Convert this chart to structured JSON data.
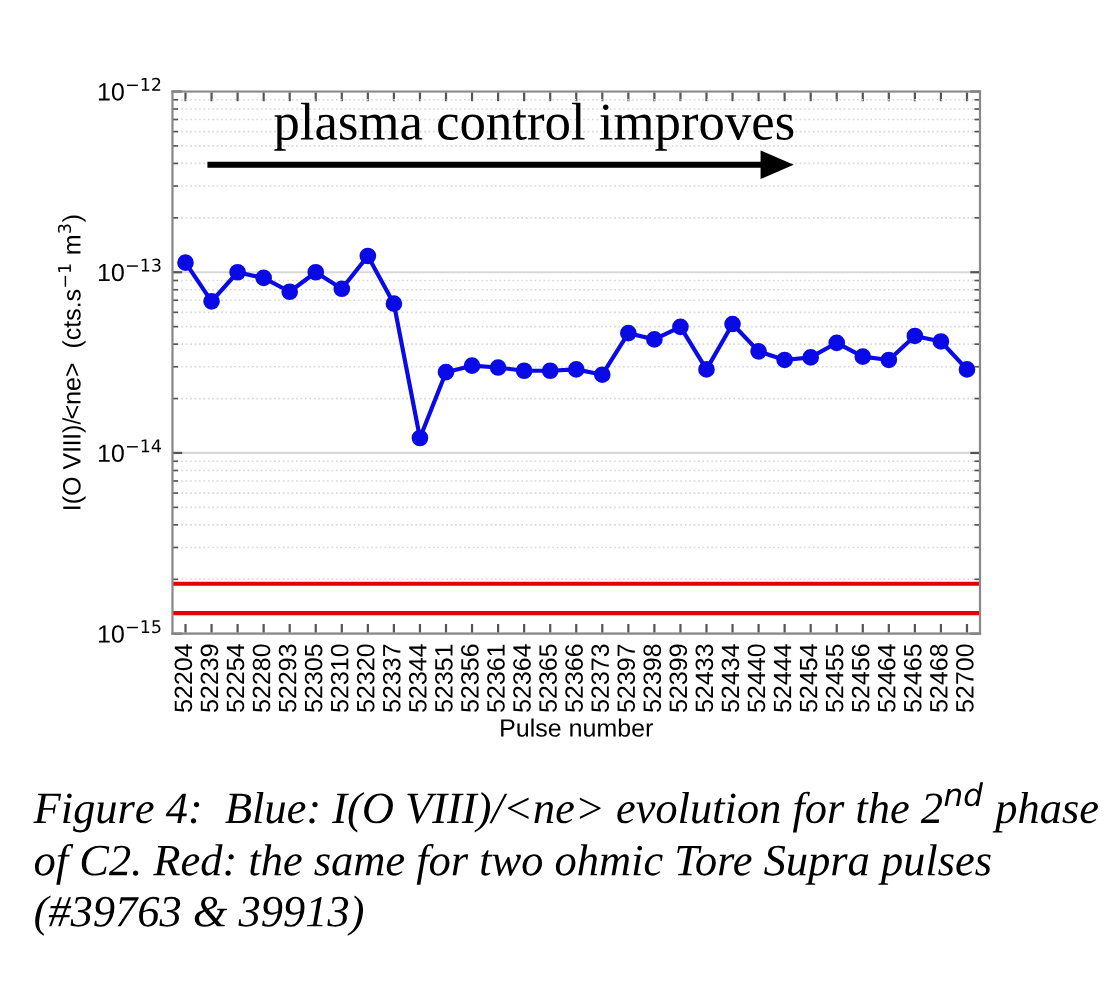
{
  "chart_data": {
    "type": "line",
    "xlabel": "Pulse number",
    "ylabel": "I(O VIII)/<ne>  (cts.s$^{−1}$ m$^{3}$)",
    "categories": [
      "52204",
      "52239",
      "52254",
      "52280",
      "52293",
      "52305",
      "52310",
      "52320",
      "52337",
      "52344",
      "52351",
      "52356",
      "52361",
      "52364",
      "52365",
      "52366",
      "52373",
      "52397",
      "52398",
      "52399",
      "52433",
      "52434",
      "52440",
      "52444",
      "52454",
      "52455",
      "52456",
      "52464",
      "52465",
      "52468",
      "52700"
    ],
    "series": [
      {
        "color": "#0a0ae6",
        "values": [
          1.13e-13,
          6.9e-14,
          1e-13,
          9.3e-14,
          7.8e-14,
          1e-13,
          8.1e-14,
          1.23e-13,
          6.7e-14,
          1.21e-14,
          2.8e-14,
          3.04e-14,
          2.97e-14,
          2.85e-14,
          2.85e-14,
          2.9e-14,
          2.71e-14,
          4.6e-14,
          4.25e-14,
          4.99e-14,
          2.9e-14,
          5.17e-14,
          3.65e-14,
          3.27e-14,
          3.38e-14,
          4.07e-14,
          3.41e-14,
          3.27e-14,
          4.44e-14,
          4.14e-14,
          2.9e-14
        ]
      }
    ],
    "log": "y",
    "ylim": [
      1e-15,
      1e-12
    ],
    "yticks": [
      {
        "value": 1e-15,
        "label": "10$^{−15}$"
      },
      {
        "value": 1e-14,
        "label": "10$^{−14}$"
      },
      {
        "value": 1e-13,
        "label": "10$^{−13}$"
      },
      {
        "value": 1e-12,
        "label": "10$^{−12}$"
      }
    ],
    "ref_lines": [
      {
        "axis": "y",
        "value": 1.89e-15,
        "color": "#e60000"
      },
      {
        "axis": "y",
        "value": 1.3e-15,
        "color": "#e60000"
      }
    ],
    "grid": "y",
    "marker": "circle",
    "line_style": "solid",
    "annotations": [
      "plasma control improves",
      "Figure 4:  Blue: I(O VIII)/<ne> evolution for the 2$^{nd}$ phase of C2. Red: the same for two ohmic Tore Supra pulses (#39763 & 39913)"
    ]
  }
}
